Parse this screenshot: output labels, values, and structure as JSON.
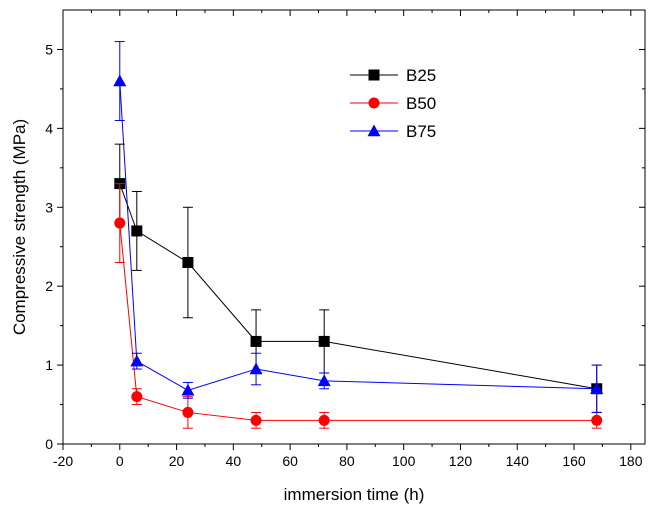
{
  "chart_data": {
    "type": "line",
    "title": "",
    "xlabel": "immersion time (h)",
    "ylabel": "Compressive strength (MPa)",
    "xlim": [
      -20,
      185
    ],
    "ylim": [
      0,
      5.5
    ],
    "x_ticks": [
      -20,
      0,
      20,
      40,
      60,
      80,
      100,
      120,
      140,
      160,
      180
    ],
    "y_ticks": [
      0,
      1,
      2,
      3,
      4,
      5
    ],
    "grid": false,
    "legend": "top-center",
    "series": [
      {
        "name": "B25",
        "color": "#000000",
        "marker": "square",
        "x": [
          0,
          6,
          24,
          48,
          72,
          168
        ],
        "y": [
          3.3,
          2.7,
          2.3,
          1.3,
          1.3,
          0.7
        ],
        "error": [
          0.5,
          0.5,
          0.7,
          0.4,
          0.4,
          0.3
        ]
      },
      {
        "name": "B50",
        "color": "#ff0000",
        "marker": "circle",
        "x": [
          0,
          6,
          24,
          48,
          72,
          168
        ],
        "y": [
          2.8,
          0.6,
          0.4,
          0.3,
          0.3,
          0.3
        ],
        "error": [
          0.5,
          0.1,
          0.2,
          0.1,
          0.1,
          0.1
        ]
      },
      {
        "name": "B75",
        "color": "#0000ff",
        "marker": "triangle",
        "x": [
          0,
          6,
          24,
          48,
          72,
          168
        ],
        "y": [
          4.6,
          1.05,
          0.68,
          0.95,
          0.8,
          0.7
        ],
        "error": [
          0.5,
          0.1,
          0.1,
          0.2,
          0.1,
          0.3
        ]
      }
    ]
  }
}
